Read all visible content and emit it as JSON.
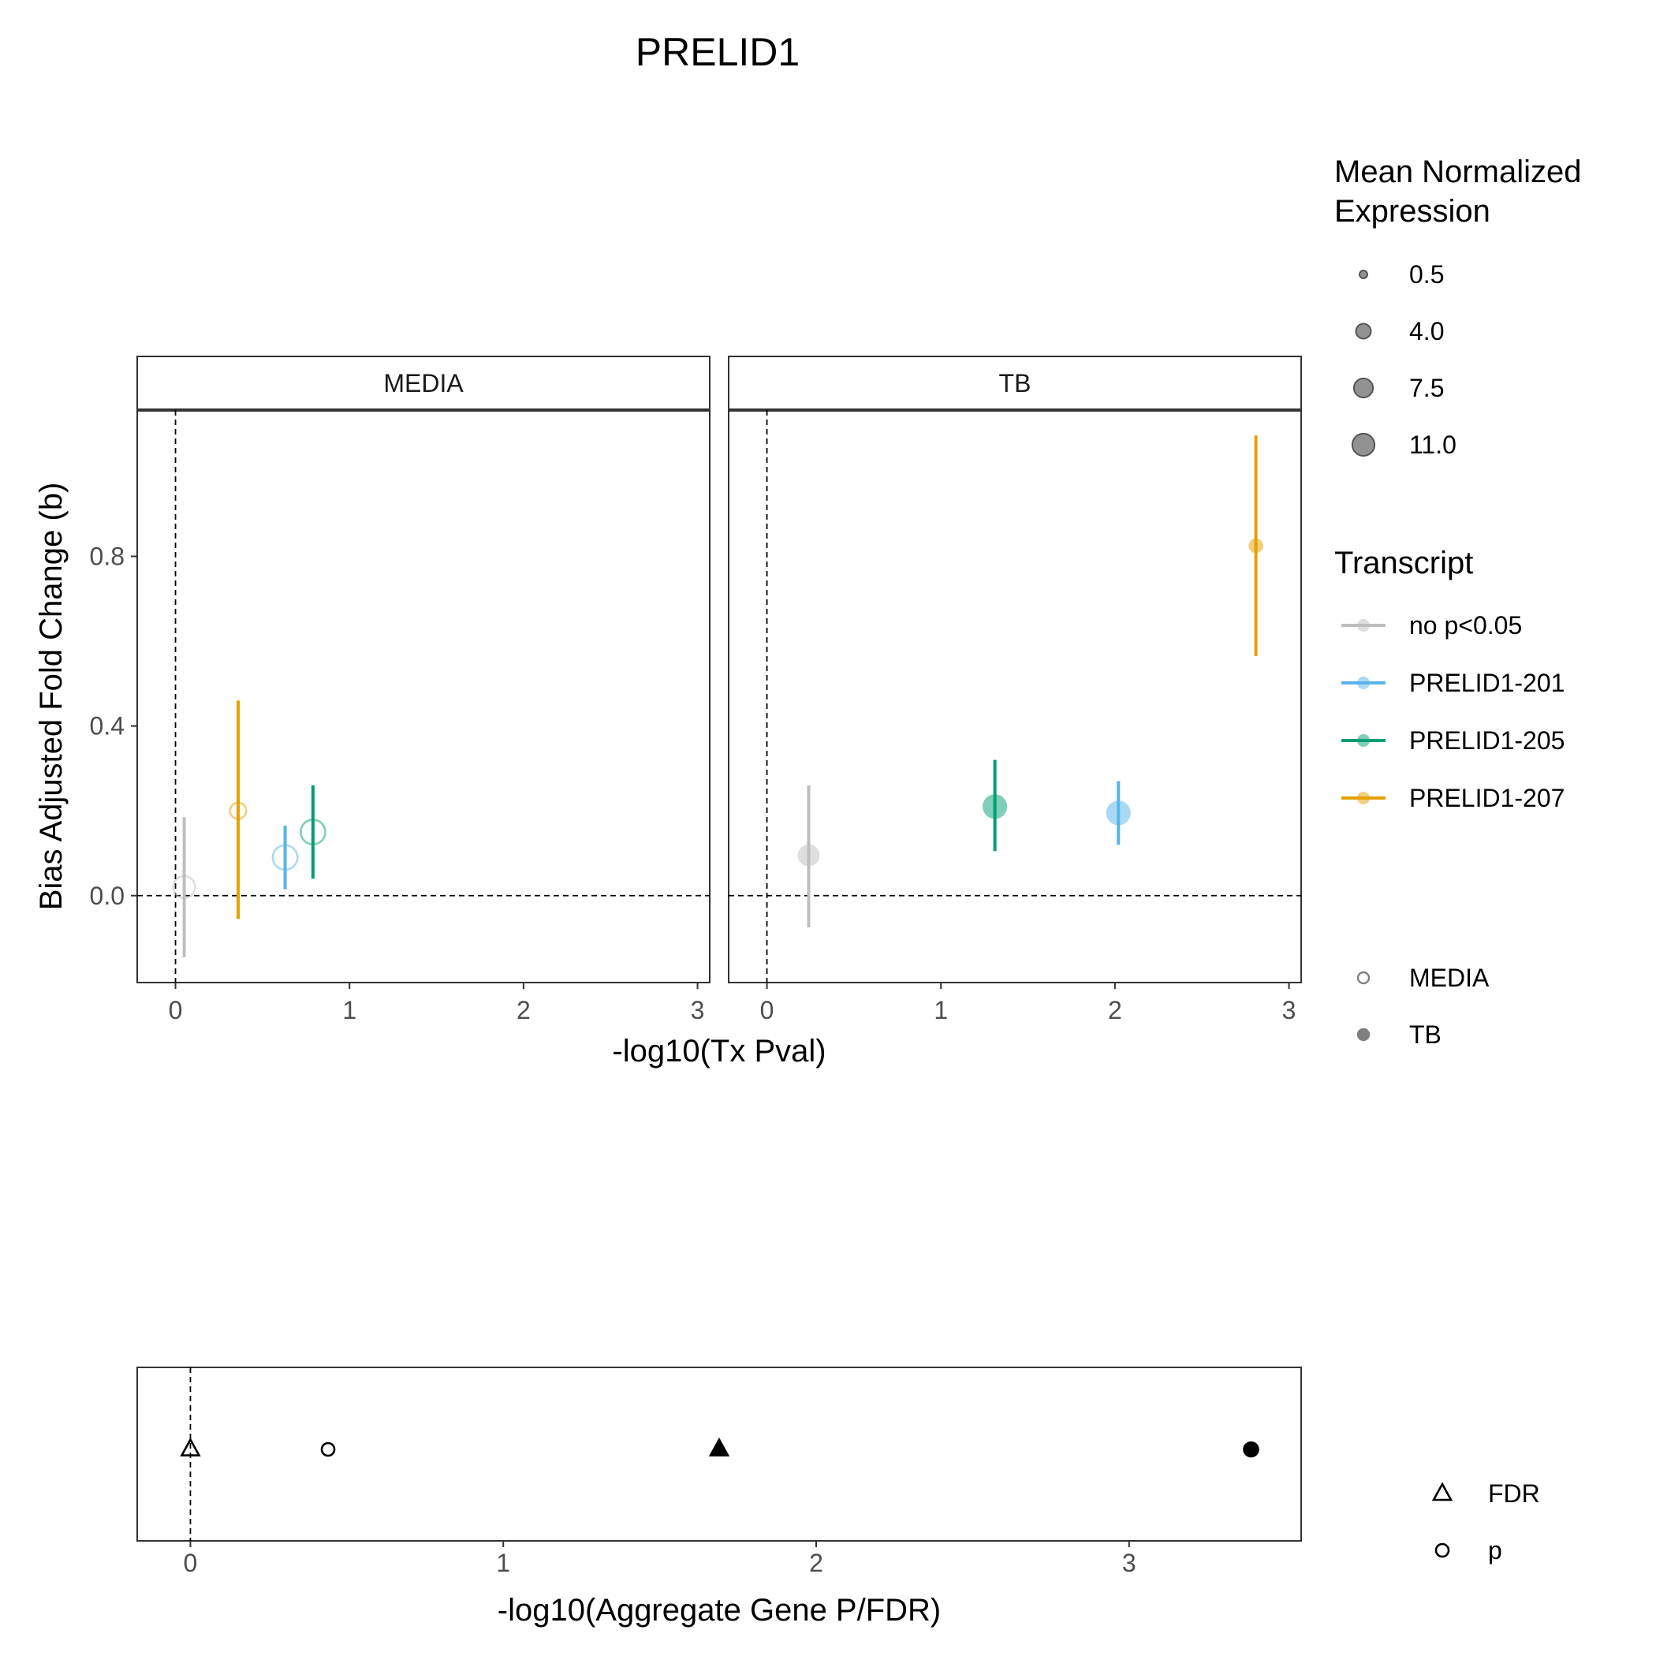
{
  "title": "PRELID1",
  "colors": {
    "no_sig": "#BEBEBE",
    "PRELID1-201": "#56B4E9",
    "PRELID1-205": "#009E73",
    "PRELID1-207": "#E69F00",
    "legend_gray": "#7F7F7F",
    "axis": "#333333",
    "tick_text": "#4D4D4D"
  },
  "chart_data": [
    {
      "type": "scatter",
      "panels": [
        "MEDIA",
        "TB"
      ],
      "xlabel": "-log10(Tx Pval)",
      "ylabel": "Bias Adjusted Fold Change (b)",
      "xlim": [
        -0.22,
        3.07
      ],
      "ylim": [
        -0.205,
        1.145
      ],
      "xticks": [
        0,
        1,
        2,
        3
      ],
      "xtick_labels": [
        "0",
        "1",
        "2",
        "3"
      ],
      "yticks": [
        0.0,
        0.4,
        0.8
      ],
      "ytick_labels": [
        "0.0",
        "0.4",
        "0.8"
      ],
      "reference_lines": {
        "x": 0,
        "y": 0
      },
      "grid": false,
      "series": [
        {
          "name": "no p<0.05",
          "color_key": "no_sig",
          "points": [
            {
              "panel": "MEDIA",
              "x": 0.05,
              "y": 0.02,
              "ymin": -0.145,
              "ymax": 0.185,
              "size": 8.0,
              "filled": false
            },
            {
              "panel": "TB",
              "x": 0.24,
              "y": 0.095,
              "ymin": -0.075,
              "ymax": 0.26,
              "size": 8.0,
              "filled": true
            }
          ]
        },
        {
          "name": "PRELID1-201",
          "color_key": "PRELID1-201",
          "points": [
            {
              "panel": "MEDIA",
              "x": 0.63,
              "y": 0.09,
              "ymin": 0.015,
              "ymax": 0.165,
              "size": 11.0,
              "filled": false
            },
            {
              "panel": "TB",
              "x": 2.02,
              "y": 0.195,
              "ymin": 0.12,
              "ymax": 0.27,
              "size": 11.0,
              "filled": true
            }
          ]
        },
        {
          "name": "PRELID1-205",
          "color_key": "PRELID1-205",
          "points": [
            {
              "panel": "MEDIA",
              "x": 0.79,
              "y": 0.15,
              "ymin": 0.04,
              "ymax": 0.26,
              "size": 11.0,
              "filled": false
            },
            {
              "panel": "TB",
              "x": 1.31,
              "y": 0.21,
              "ymin": 0.105,
              "ymax": 0.32,
              "size": 11.0,
              "filled": true
            }
          ]
        },
        {
          "name": "PRELID1-207",
          "color_key": "PRELID1-207",
          "points": [
            {
              "panel": "MEDIA",
              "x": 0.36,
              "y": 0.2,
              "ymin": -0.055,
              "ymax": 0.46,
              "size": 3.2,
              "filled": false
            },
            {
              "panel": "TB",
              "x": 2.81,
              "y": 0.825,
              "ymin": 0.565,
              "ymax": 1.085,
              "size": 2.3,
              "filled": true
            }
          ]
        }
      ]
    },
    {
      "type": "scatter",
      "xlabel": "-log10(Aggregate Gene P/FDR)",
      "xlim": [
        -0.17,
        3.55
      ],
      "xticks": [
        0,
        1,
        2,
        3
      ],
      "xtick_labels": [
        "0",
        "1",
        "2",
        "3"
      ],
      "reference_lines": {
        "x": 0
      },
      "points": [
        {
          "metric": "FDR",
          "condition": "MEDIA",
          "x": 0.0,
          "shape": "triangle",
          "filled": false
        },
        {
          "metric": "p",
          "condition": "MEDIA",
          "x": 0.44,
          "shape": "circle",
          "filled": false
        },
        {
          "metric": "FDR",
          "condition": "TB",
          "x": 1.69,
          "shape": "triangle",
          "filled": true
        },
        {
          "metric": "p",
          "condition": "TB",
          "x": 3.39,
          "shape": "circle",
          "filled": true
        }
      ]
    }
  ],
  "legend": {
    "size": {
      "title_lines": [
        "Mean Normalized",
        "Expression"
      ],
      "items": [
        {
          "label": "0.5",
          "value": 0.5
        },
        {
          "label": "4.0",
          "value": 4.0
        },
        {
          "label": "7.5",
          "value": 7.5
        },
        {
          "label": "11.0",
          "value": 11.0
        }
      ]
    },
    "transcript": {
      "title": "Transcript",
      "items": [
        {
          "label": "no p<0.05",
          "color_key": "no_sig"
        },
        {
          "label": "PRELID1-201",
          "color_key": "PRELID1-201"
        },
        {
          "label": "PRELID1-205",
          "color_key": "PRELID1-205"
        },
        {
          "label": "PRELID1-207",
          "color_key": "PRELID1-207"
        }
      ]
    },
    "condition": {
      "items": [
        {
          "label": "MEDIA",
          "filled": false
        },
        {
          "label": "TB",
          "filled": true
        }
      ]
    },
    "metric": {
      "items": [
        {
          "label": "FDR",
          "shape": "triangle"
        },
        {
          "label": "p",
          "shape": "circle"
        }
      ]
    }
  }
}
